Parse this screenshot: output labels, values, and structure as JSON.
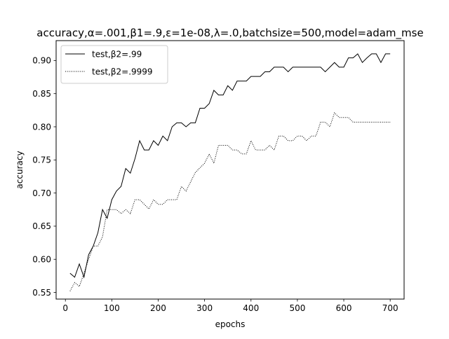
{
  "chart_data": {
    "type": "line",
    "title": "accuracy,α=.001,β1=.9,ε=1e-08,λ=.0,batchsize=500,model=adam_mse",
    "xlabel": "epochs",
    "ylabel": "accuracy",
    "xlim": [
      -20,
      730
    ],
    "ylim": [
      0.54,
      0.93
    ],
    "xticks": [
      "0",
      "100",
      "200",
      "300",
      "400",
      "500",
      "600",
      "700"
    ],
    "yticks": [
      "0.55",
      "0.60",
      "0.65",
      "0.70",
      "0.75",
      "0.80",
      "0.85",
      "0.90"
    ],
    "grid": false,
    "legend_position": "top-left",
    "series": [
      {
        "name": "test,β2=.99",
        "style": "solid",
        "color": "#000000",
        "x": [
          10,
          20,
          30,
          40,
          50,
          60,
          70,
          80,
          90,
          100,
          110,
          120,
          130,
          140,
          150,
          160,
          170,
          180,
          190,
          200,
          210,
          220,
          230,
          240,
          250,
          260,
          270,
          280,
          290,
          300,
          310,
          320,
          330,
          340,
          350,
          360,
          370,
          380,
          390,
          400,
          410,
          420,
          430,
          440,
          450,
          460,
          470,
          480,
          490,
          500,
          510,
          520,
          530,
          540,
          550,
          560,
          570,
          580,
          590,
          600,
          610,
          620,
          630,
          640,
          650,
          660,
          670,
          680,
          690,
          700
        ],
        "y": [
          0.579,
          0.573,
          0.593,
          0.573,
          0.607,
          0.62,
          0.64,
          0.675,
          0.662,
          0.69,
          0.703,
          0.71,
          0.737,
          0.73,
          0.752,
          0.779,
          0.765,
          0.765,
          0.779,
          0.772,
          0.786,
          0.779,
          0.8,
          0.806,
          0.806,
          0.8,
          0.806,
          0.806,
          0.828,
          0.828,
          0.835,
          0.855,
          0.848,
          0.848,
          0.862,
          0.855,
          0.869,
          0.869,
          0.869,
          0.876,
          0.876,
          0.876,
          0.883,
          0.883,
          0.89,
          0.89,
          0.89,
          0.883,
          0.89,
          0.89,
          0.89,
          0.89,
          0.89,
          0.89,
          0.89,
          0.883,
          0.89,
          0.897,
          0.89,
          0.89,
          0.904,
          0.904,
          0.91,
          0.897,
          0.904,
          0.91,
          0.91,
          0.897,
          0.91,
          0.91
        ]
      },
      {
        "name": "test,β2=.9999",
        "style": "dotted",
        "color": "#000000",
        "x": [
          10,
          20,
          30,
          40,
          50,
          60,
          70,
          80,
          90,
          100,
          110,
          120,
          130,
          140,
          150,
          160,
          170,
          180,
          190,
          200,
          210,
          220,
          230,
          240,
          250,
          260,
          270,
          280,
          290,
          300,
          310,
          320,
          330,
          340,
          350,
          360,
          370,
          380,
          390,
          400,
          410,
          420,
          430,
          440,
          450,
          460,
          470,
          480,
          490,
          500,
          510,
          520,
          530,
          540,
          550,
          560,
          570,
          580,
          590,
          600,
          610,
          620,
          630,
          640,
          650,
          660,
          670,
          680,
          690,
          700
        ],
        "y": [
          0.552,
          0.565,
          0.559,
          0.579,
          0.6,
          0.62,
          0.62,
          0.634,
          0.675,
          0.675,
          0.675,
          0.669,
          0.675,
          0.669,
          0.69,
          0.69,
          0.683,
          0.676,
          0.69,
          0.683,
          0.683,
          0.69,
          0.69,
          0.69,
          0.71,
          0.703,
          0.717,
          0.731,
          0.738,
          0.745,
          0.759,
          0.745,
          0.772,
          0.772,
          0.772,
          0.765,
          0.765,
          0.759,
          0.759,
          0.779,
          0.765,
          0.765,
          0.765,
          0.772,
          0.765,
          0.786,
          0.786,
          0.779,
          0.779,
          0.786,
          0.786,
          0.779,
          0.786,
          0.786,
          0.807,
          0.807,
          0.8,
          0.821,
          0.814,
          0.814,
          0.814,
          0.807,
          0.807,
          0.807,
          0.807,
          0.807,
          0.807,
          0.807,
          0.807,
          0.807
        ]
      }
    ]
  }
}
